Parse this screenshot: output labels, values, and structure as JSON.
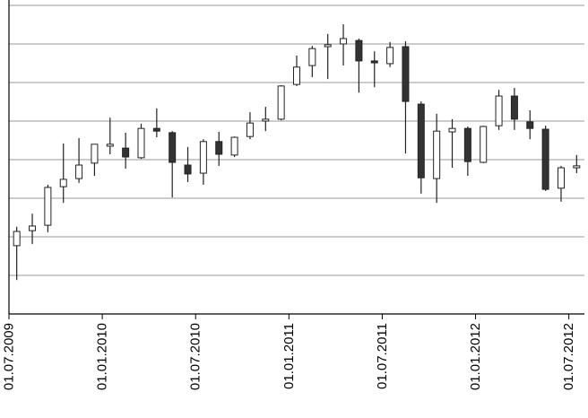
{
  "chart_data": {
    "type": "candlestick",
    "x": [
      "01.07.2009",
      "01.08.2009",
      "01.09.2009",
      "01.10.2009",
      "01.11.2009",
      "01.12.2009",
      "01.01.2010",
      "01.02.2010",
      "01.03.2010",
      "01.04.2010",
      "01.05.2010",
      "01.06.2010",
      "01.07.2010",
      "01.08.2010",
      "01.09.2010",
      "01.10.2010",
      "01.11.2010",
      "01.12.2010",
      "01.01.2011",
      "01.02.2011",
      "01.03.2011",
      "01.04.2011",
      "01.05.2011",
      "01.06.2011",
      "01.07.2011",
      "01.08.2011",
      "01.09.2011",
      "01.10.2011",
      "01.11.2011",
      "01.12.2011",
      "01.01.2012",
      "01.02.2012",
      "01.03.2012",
      "01.04.2012",
      "01.05.2012",
      "01.06.2012",
      "01.07.2012"
    ],
    "open": [
      1.77,
      2.16,
      2.3,
      3.3,
      3.51,
      3.91,
      4.35,
      4.3,
      4.05,
      4.81,
      4.7,
      3.86,
      3.65,
      4.47,
      4.12,
      4.6,
      5.0,
      5.05,
      5.95,
      6.44,
      6.93,
      7.0,
      7.09,
      6.56,
      6.49,
      6.93,
      5.44,
      3.51,
      4.72,
      4.81,
      3.93,
      4.88,
      5.65,
      4.98,
      4.79,
      3.26,
      3.79
    ],
    "high": [
      2.26,
      2.6,
      3.35,
      4.42,
      4.56,
      4.4,
      5.09,
      4.7,
      4.93,
      5.33,
      4.74,
      4.33,
      4.53,
      4.72,
      4.6,
      5.23,
      5.37,
      5.93,
      6.7,
      6.95,
      7.26,
      7.51,
      7.14,
      6.81,
      7.05,
      7.07,
      5.51,
      5.19,
      5.05,
      4.86,
      4.88,
      5.81,
      5.86,
      5.28,
      4.88,
      3.84,
      4.12
    ],
    "low": [
      0.88,
      1.81,
      2.12,
      2.88,
      3.4,
      3.58,
      4.14,
      3.77,
      4.02,
      4.58,
      3.02,
      3.42,
      3.35,
      3.84,
      4.07,
      4.53,
      4.74,
      5.02,
      5.91,
      6.14,
      6.09,
      6.44,
      5.74,
      5.88,
      6.4,
      4.16,
      3.12,
      2.88,
      3.79,
      3.58,
      3.91,
      4.77,
      4.77,
      4.53,
      3.19,
      2.91,
      3.65
    ],
    "close": [
      2.14,
      2.28,
      3.28,
      3.49,
      3.86,
      4.4,
      4.4,
      4.07,
      4.81,
      4.74,
      3.93,
      3.63,
      4.47,
      4.14,
      4.58,
      4.95,
      5.05,
      5.91,
      6.4,
      6.88,
      6.98,
      7.14,
      6.56,
      6.51,
      6.91,
      5.51,
      3.53,
      4.74,
      4.81,
      3.95,
      4.86,
      5.65,
      5.05,
      4.81,
      3.23,
      3.79,
      3.84
    ],
    "xlim": [
      "01.07.2009",
      "01.08.2012"
    ],
    "xticks": [
      "01.07.2009",
      "01.01.2010",
      "01.07.2010",
      "01.01.2011",
      "01.07.2011",
      "01.01.2012",
      "01.07.2012"
    ],
    "ylim": [
      0,
      8
    ],
    "yticks": [
      1,
      2,
      3,
      4,
      5,
      6,
      7,
      8
    ],
    "ytick_labels": false,
    "grid": true,
    "up_color": "#ffffff",
    "down_color": "#333333",
    "line_color": "#222222"
  }
}
